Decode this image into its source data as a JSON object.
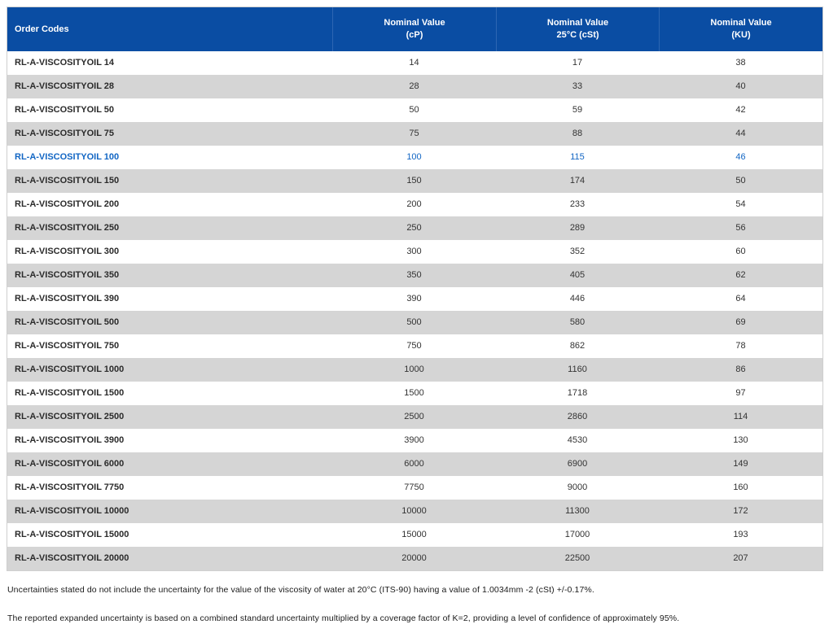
{
  "table": {
    "columns": [
      {
        "label": "Order Codes",
        "sublabel": ""
      },
      {
        "label": "Nominal Value",
        "sublabel": "(cP)"
      },
      {
        "label": "Nominal Value",
        "sublabel": "25°C (cSt)"
      },
      {
        "label": "Nominal Value",
        "sublabel": "(KU)"
      }
    ],
    "rows": [
      {
        "code": "RL-A-VISCOSITYOIL 14",
        "cp": "14",
        "cst": "17",
        "ku": "38",
        "highlighted": false
      },
      {
        "code": "RL-A-VISCOSITYOIL 28",
        "cp": "28",
        "cst": "33",
        "ku": "40",
        "highlighted": false
      },
      {
        "code": "RL-A-VISCOSITYOIL 50",
        "cp": "50",
        "cst": "59",
        "ku": "42",
        "highlighted": false
      },
      {
        "code": "RL-A-VISCOSITYOIL 75",
        "cp": "75",
        "cst": "88",
        "ku": "44",
        "highlighted": false
      },
      {
        "code": "RL-A-VISCOSITYOIL 100",
        "cp": "100",
        "cst": "115",
        "ku": "46",
        "highlighted": true
      },
      {
        "code": "RL-A-VISCOSITYOIL 150",
        "cp": "150",
        "cst": "174",
        "ku": "50",
        "highlighted": false
      },
      {
        "code": "RL-A-VISCOSITYOIL 200",
        "cp": "200",
        "cst": "233",
        "ku": "54",
        "highlighted": false
      },
      {
        "code": "RL-A-VISCOSITYOIL 250",
        "cp": "250",
        "cst": "289",
        "ku": "56",
        "highlighted": false
      },
      {
        "code": "RL-A-VISCOSITYOIL 300",
        "cp": "300",
        "cst": "352",
        "ku": "60",
        "highlighted": false
      },
      {
        "code": "RL-A-VISCOSITYOIL 350",
        "cp": "350",
        "cst": "405",
        "ku": "62",
        "highlighted": false
      },
      {
        "code": "RL-A-VISCOSITYOIL 390",
        "cp": "390",
        "cst": "446",
        "ku": "64",
        "highlighted": false
      },
      {
        "code": "RL-A-VISCOSITYOIL 500",
        "cp": "500",
        "cst": "580",
        "ku": "69",
        "highlighted": false
      },
      {
        "code": "RL-A-VISCOSITYOIL 750",
        "cp": "750",
        "cst": "862",
        "ku": "78",
        "highlighted": false
      },
      {
        "code": "RL-A-VISCOSITYOIL 1000",
        "cp": "1000",
        "cst": "1160",
        "ku": "86",
        "highlighted": false
      },
      {
        "code": "RL-A-VISCOSITYOIL 1500",
        "cp": "1500",
        "cst": "1718",
        "ku": "97",
        "highlighted": false
      },
      {
        "code": "RL-A-VISCOSITYOIL 2500",
        "cp": "2500",
        "cst": "2860",
        "ku": "114",
        "highlighted": false
      },
      {
        "code": "RL-A-VISCOSITYOIL 3900",
        "cp": "3900",
        "cst": "4530",
        "ku": "130",
        "highlighted": false
      },
      {
        "code": "RL-A-VISCOSITYOIL 6000",
        "cp": "6000",
        "cst": "6900",
        "ku": "149",
        "highlighted": false
      },
      {
        "code": "RL-A-VISCOSITYOIL 7750",
        "cp": "7750",
        "cst": "9000",
        "ku": "160",
        "highlighted": false
      },
      {
        "code": "RL-A-VISCOSITYOIL 10000",
        "cp": "10000",
        "cst": "11300",
        "ku": "172",
        "highlighted": false
      },
      {
        "code": "RL-A-VISCOSITYOIL 15000",
        "cp": "15000",
        "cst": "17000",
        "ku": "193",
        "highlighted": false
      },
      {
        "code": "RL-A-VISCOSITYOIL 20000",
        "cp": "20000",
        "cst": "22500",
        "ku": "207",
        "highlighted": false
      }
    ]
  },
  "footnotes": [
    "Uncertainties stated do not include the uncertainty for the value of the viscosity of water at 20°C (ITS-90) having a value of 1.0034mm -2 (cSt) +/-0.17%.",
    "The reported expanded uncertainty is based on a combined standard uncertainty multiplied by a coverage factor of K=2, providing a level of confidence of approximately 95%."
  ],
  "colors": {
    "header_bg": "#0a4da3",
    "header_divider": "#2d66b2",
    "header_text": "#ffffff",
    "stripe_row_bg": "#d5d5d5",
    "highlight_text": "#1266c4",
    "body_text": "#2e2e2e",
    "table_border": "#cfcfcf"
  }
}
